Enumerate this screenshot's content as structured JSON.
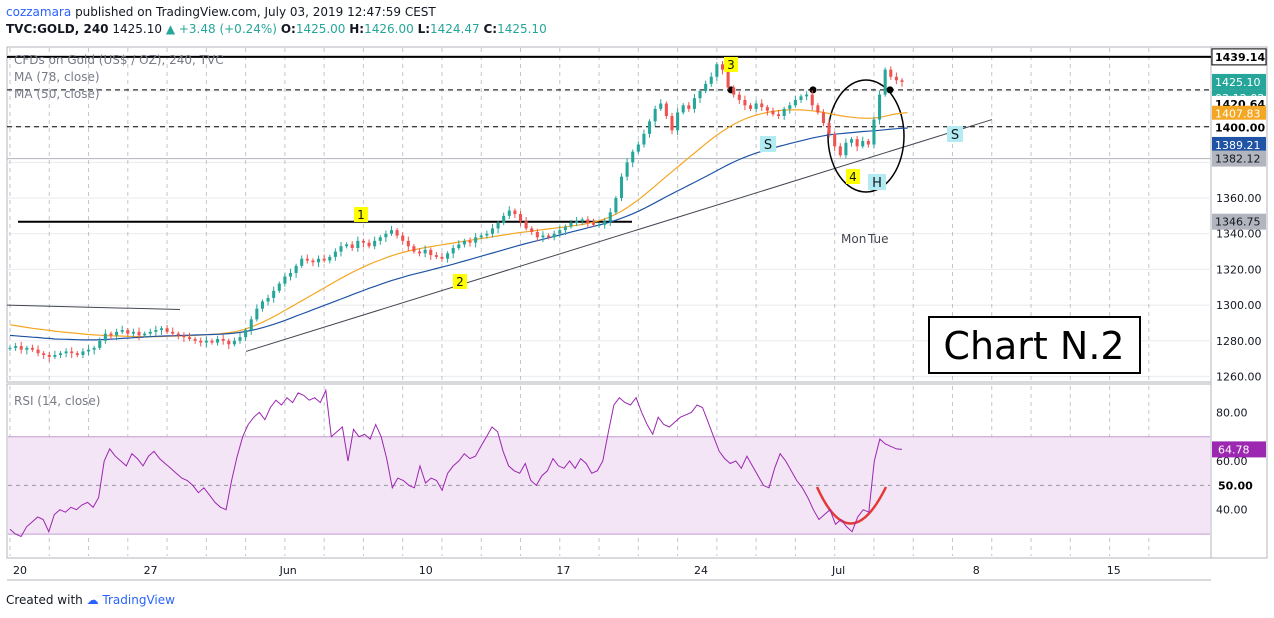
{
  "header": {
    "author": "cozzamara",
    "published": "published on TradingView.com, July 03, 2019 12:47:59 CEST",
    "symbol": "TVC:GOLD, 240",
    "last": "1425.10",
    "change": "▲ +3.48 (+0.24%)",
    "o_label": "O:",
    "o_val": "1425.00",
    "h_label": "H:",
    "h_val": "1426.00",
    "l_label": "L:",
    "l_val": "1424.47",
    "c_label": "C:",
    "c_val": "1425.10"
  },
  "legend": {
    "instrument": "CFDs on Gold (US$ / OZ), 240, TVC",
    "ma78": "MA (78, close)",
    "ma50": "MA (50, close)",
    "rsi": "RSI (14, close)"
  },
  "chart_note": "Chart N.2",
  "annotations": {
    "w1": "1",
    "w2": "2",
    "w3": "3",
    "w4": "4",
    "s1": "S",
    "s2": "S",
    "h": "H",
    "day_mon": "Mon",
    "day_tue": "Tue"
  },
  "footer": {
    "created": "Created with",
    "brand": "TradingView"
  },
  "colors": {
    "bull": "#26a69a",
    "bear": "#ef5350",
    "ma78": "#1e53a5",
    "ma50": "#f5a623",
    "rsi": "#9c27b0",
    "rsi_band": "#f3e5f5",
    "wave_label": "#ffff00",
    "hs_label": "#b2ebf2",
    "tag_green": "#26a69a",
    "tag_orange": "#f5a623",
    "tag_blue": "#1e53a5",
    "tag_grey": "#b2b5be"
  },
  "chart_data": [
    {
      "type": "candlestick",
      "title": "CFDs on Gold (US$ / OZ), 240, TVC",
      "y_ticks": [
        "1280.00",
        "1300.00",
        "1320.00",
        "1340.00",
        "1360.00",
        "1380.00",
        "1400.00",
        "1420.00",
        "1440.00",
        "1260.00"
      ],
      "ylim": [
        1258,
        1443
      ],
      "x_ticks": [
        "20",
        "27",
        "Jun",
        "10",
        "17",
        "24",
        "Jul",
        "8",
        "15"
      ],
      "series": [
        {
          "name": "CFDs on Gold (US$ / OZ), 240, TVC",
          "close": [
            1276,
            1277,
            1275,
            1276,
            1275,
            1273,
            1272,
            1271,
            1272,
            1273,
            1274,
            1273,
            1272,
            1274,
            1275,
            1276,
            1280,
            1284,
            1283,
            1285,
            1286,
            1284,
            1285,
            1283,
            1284,
            1285,
            1286,
            1287,
            1285,
            1284,
            1283,
            1282,
            1281,
            1280,
            1279,
            1280,
            1279,
            1281,
            1280,
            1278,
            1280,
            1282,
            1286,
            1292,
            1298,
            1302,
            1304,
            1308,
            1312,
            1316,
            1318,
            1322,
            1326,
            1325,
            1324,
            1326,
            1325,
            1327,
            1330,
            1333,
            1334,
            1332,
            1336,
            1335,
            1333,
            1336,
            1338,
            1340,
            1342,
            1339,
            1336,
            1333,
            1330,
            1329,
            1331,
            1328,
            1327,
            1326,
            1329,
            1332,
            1334,
            1336,
            1335,
            1338,
            1339,
            1340,
            1343,
            1346,
            1350,
            1353,
            1351,
            1347,
            1343,
            1341,
            1338,
            1339,
            1338,
            1340,
            1342,
            1344,
            1346,
            1347,
            1348,
            1346,
            1345,
            1345,
            1347,
            1352,
            1360,
            1372,
            1380,
            1386,
            1390,
            1396,
            1403,
            1410,
            1413,
            1406,
            1398,
            1408,
            1412,
            1410,
            1416,
            1420,
            1424,
            1428,
            1435,
            1432,
            1422,
            1418,
            1415,
            1412,
            1410,
            1413,
            1411,
            1409,
            1407,
            1406,
            1410,
            1412,
            1415,
            1417,
            1418,
            1412,
            1408,
            1402,
            1396,
            1389,
            1384,
            1391,
            1393,
            1389,
            1392,
            1390,
            1404,
            1418,
            1432,
            1428,
            1426,
            1425.1
          ],
          "ma78": [
            1283,
            1282.8,
            1282.5,
            1282.3,
            1282,
            1281.8,
            1281.5,
            1281.3,
            1281,
            1280.9,
            1280.8,
            1280.7,
            1280.6,
            1280.5,
            1280.5,
            1280.5,
            1280.6,
            1280.7,
            1280.9,
            1281.1,
            1281.3,
            1281.5,
            1281.7,
            1281.9,
            1282.1,
            1282.3,
            1282.5,
            1282.6,
            1282.7,
            1282.8,
            1282.9,
            1283,
            1283.1,
            1283.2,
            1283.3,
            1283.4,
            1283.5,
            1283.6,
            1283.8,
            1284,
            1284.3,
            1284.7,
            1285.2,
            1285.8,
            1286.5,
            1287.3,
            1288.2,
            1289.2,
            1290.3,
            1291.4,
            1292.6,
            1293.8,
            1295,
            1296.2,
            1297.4,
            1298.6,
            1299.8,
            1301,
            1302.2,
            1303.4,
            1304.6,
            1305.8,
            1307,
            1308.2,
            1309.4,
            1310.5,
            1311.6,
            1312.7,
            1313.7,
            1314.7,
            1315.6,
            1316.5,
            1317.3,
            1318.1,
            1318.9,
            1319.7,
            1320.5,
            1321.3,
            1322.1,
            1322.9,
            1323.8,
            1324.7,
            1325.6,
            1326.5,
            1327.4,
            1328.3,
            1329.2,
            1330.1,
            1331,
            1331.9,
            1332.8,
            1333.7,
            1334.5,
            1335.3,
            1336.1,
            1336.9,
            1337.7,
            1338.5,
            1339.3,
            1340.1,
            1340.9,
            1341.7,
            1342.5,
            1343.3,
            1344.1,
            1344.9,
            1345.7,
            1346.6,
            1347.6,
            1348.7,
            1349.9,
            1351.2,
            1352.6,
            1354.1,
            1355.7,
            1357.4,
            1359.1,
            1360.8,
            1362.4,
            1364,
            1365.6,
            1367.2,
            1368.8,
            1370.4,
            1372,
            1373.7,
            1375.4,
            1377.1,
            1378.7,
            1380.2,
            1381.6,
            1382.9,
            1384.1,
            1385.2,
            1386.2,
            1387.2,
            1388.1,
            1388.9,
            1389.7,
            1390.5,
            1391.3,
            1392.1,
            1392.9,
            1393.6,
            1394.3,
            1394.9,
            1395.4,
            1395.8,
            1396.1,
            1396.4,
            1396.7,
            1397,
            1397.3,
            1397.5,
            1397.7,
            1398,
            1398.3,
            1398.6,
            1398.9,
            1399.1,
            1399.2
          ],
          "ma50": [
            1289,
            1288.5,
            1288,
            1287.5,
            1287,
            1286.6,
            1286.2,
            1285.8,
            1285.4,
            1285,
            1284.7,
            1284.4,
            1284.1,
            1283.8,
            1283.5,
            1283.3,
            1283.1,
            1282.9,
            1282.8,
            1282.7,
            1282.6,
            1282.5,
            1282.4,
            1282.3,
            1282.3,
            1282.3,
            1282.3,
            1282.4,
            1282.5,
            1282.6,
            1282.7,
            1282.8,
            1282.9,
            1283,
            1283.2,
            1283.4,
            1283.6,
            1283.8,
            1284.1,
            1284.5,
            1285,
            1285.7,
            1286.6,
            1287.7,
            1289,
            1290.4,
            1291.9,
            1293.5,
            1295.2,
            1297,
            1298.8,
            1300.6,
            1302.4,
            1304.2,
            1306,
            1307.8,
            1309.6,
            1311.4,
            1313.2,
            1315,
            1316.7,
            1318.3,
            1319.9,
            1321.4,
            1322.8,
            1324.1,
            1325.3,
            1326.5,
            1327.6,
            1328.6,
            1329.5,
            1330.3,
            1331,
            1331.6,
            1332.2,
            1332.8,
            1333.3,
            1333.8,
            1334.3,
            1334.8,
            1335.3,
            1335.8,
            1336.3,
            1336.8,
            1337.3,
            1337.8,
            1338.3,
            1338.8,
            1339.3,
            1339.8,
            1340.3,
            1340.7,
            1341.1,
            1341.5,
            1341.9,
            1342.3,
            1342.7,
            1343.1,
            1343.5,
            1343.9,
            1344.3,
            1344.7,
            1345.2,
            1345.8,
            1346.5,
            1347.3,
            1348.3,
            1349.5,
            1351,
            1352.7,
            1354.6,
            1356.7,
            1359,
            1361.5,
            1364.1,
            1366.8,
            1369.5,
            1372.2,
            1374.8,
            1377.4,
            1380,
            1382.6,
            1385.2,
            1387.8,
            1390.4,
            1392.9,
            1395.3,
            1397.5,
            1399.5,
            1401.3,
            1402.9,
            1404.3,
            1405.5,
            1406.5,
            1407.3,
            1408,
            1408.6,
            1409,
            1409.3,
            1409.4,
            1409.5,
            1409.4,
            1409.2,
            1408.9,
            1408.5,
            1408,
            1407.4,
            1406.8,
            1406.2,
            1405.7,
            1405.3,
            1405,
            1404.8,
            1404.7,
            1404.8,
            1405.2,
            1405.9,
            1406.6,
            1407.2,
            1407.6,
            1407.83
          ]
        }
      ],
      "price_tags": [
        "1439.14",
        "1425.10",
        "03:12:02",
        "1420.64",
        "1407.83",
        "1400.00",
        "1389.21",
        "1382.12",
        "1346.75"
      ],
      "grid": true
    },
    {
      "type": "line",
      "title": "RSI (14, close)",
      "y_ticks": [
        "80.00",
        "60.00",
        "40.00"
      ],
      "ylim": [
        21,
        90
      ],
      "band": [
        30,
        70
      ],
      "midline": 50,
      "series": [
        {
          "name": "RSI (14, close)",
          "values": [
            32,
            30,
            29,
            33,
            35,
            37,
            36,
            31,
            38,
            40,
            39,
            41,
            40,
            42,
            43,
            41,
            45,
            60,
            65,
            62,
            60,
            58,
            63,
            61,
            58,
            62,
            64,
            61,
            59,
            57,
            55,
            53,
            52,
            50,
            47,
            49,
            46,
            43,
            41,
            40,
            52,
            62,
            70,
            75,
            78,
            80,
            77,
            82,
            85,
            83,
            86,
            84,
            88,
            87,
            85,
            86,
            84,
            89,
            70,
            72,
            74,
            60,
            73,
            70,
            71,
            69,
            75,
            70,
            61,
            49,
            53,
            52,
            50,
            49,
            58,
            51,
            53,
            52,
            48,
            55,
            58,
            60,
            63,
            61,
            62,
            66,
            70,
            74,
            72,
            64,
            58,
            56,
            55,
            59,
            52,
            50,
            54,
            56,
            61,
            58,
            57,
            60,
            57,
            61,
            59,
            55,
            56,
            60,
            72,
            83,
            86,
            84,
            83,
            86,
            80,
            75,
            71,
            78,
            75,
            74,
            76,
            78,
            79,
            80,
            83,
            82,
            76,
            70,
            64,
            61,
            59,
            60,
            57,
            62,
            58,
            54,
            50,
            49,
            57,
            63,
            60,
            56,
            52,
            49,
            45,
            40,
            36,
            38,
            40,
            34,
            36,
            33,
            31,
            37,
            40,
            39,
            60,
            69,
            67,
            66,
            65,
            64.78
          ]
        }
      ],
      "price_tags": [
        "64.78",
        "50.00"
      ],
      "grid": true
    }
  ]
}
